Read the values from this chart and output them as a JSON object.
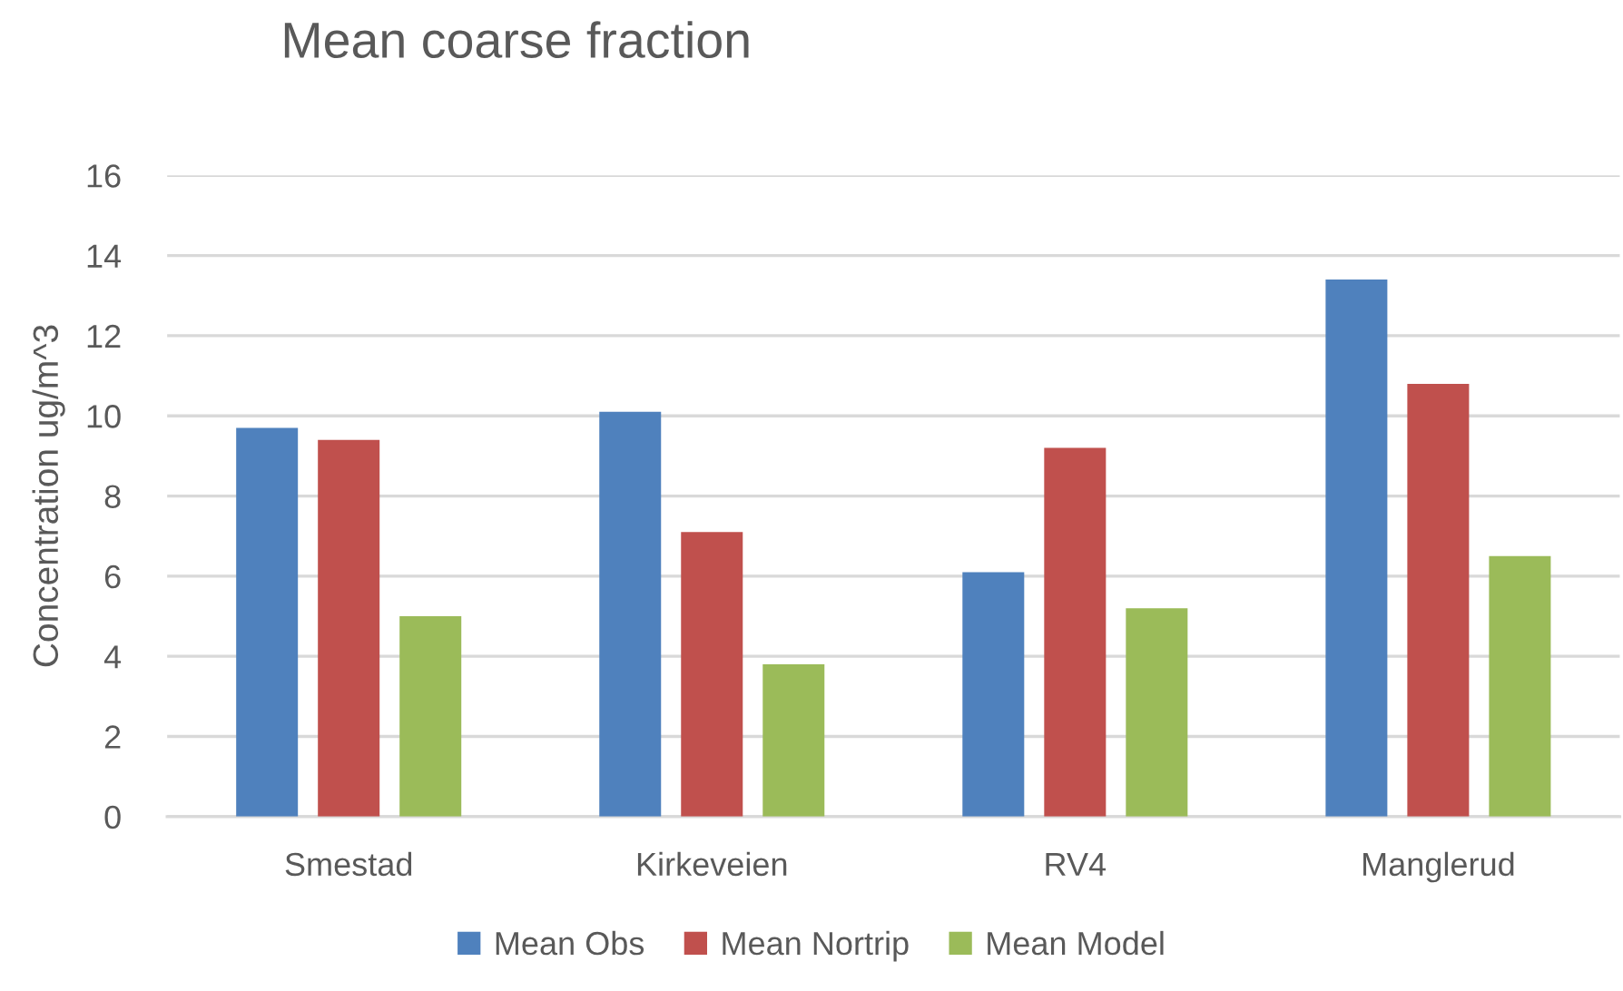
{
  "chart_data": {
    "type": "bar",
    "title": "Mean coarse fraction",
    "ylabel": "Concentration ug/m^3",
    "categories": [
      "Smestad",
      "Kirkeveien",
      "RV4",
      "Manglerud"
    ],
    "series": [
      {
        "name": "Mean Obs",
        "color": "#4f81bd",
        "values": [
          9.7,
          10.1,
          6.1,
          13.4
        ]
      },
      {
        "name": "Mean Nortrip",
        "color": "#c0504d",
        "values": [
          9.4,
          7.1,
          9.2,
          10.8
        ]
      },
      {
        "name": "Mean Model",
        "color": "#9bbb59",
        "values": [
          5.0,
          3.8,
          5.2,
          6.5
        ]
      }
    ],
    "ylim": [
      0,
      16
    ],
    "yticks": [
      0,
      2,
      4,
      6,
      8,
      10,
      12,
      14,
      16
    ],
    "grid": "y",
    "legend": "bottom"
  }
}
